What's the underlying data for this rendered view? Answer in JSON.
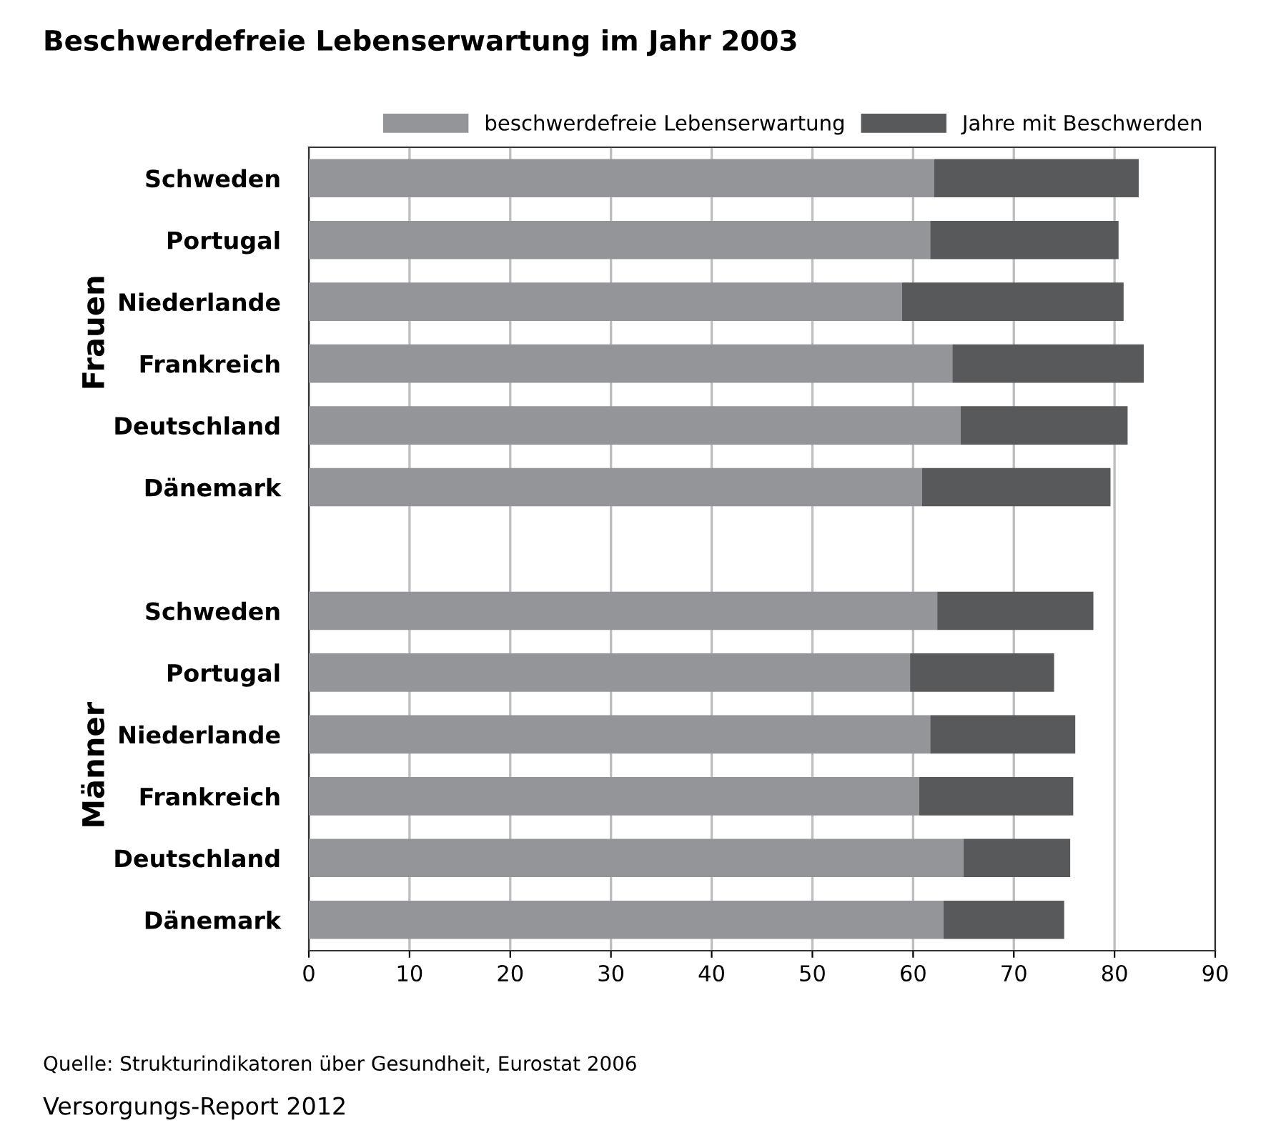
{
  "chart_data": {
    "type": "bar",
    "orientation": "horizontal",
    "stacked": true,
    "title": "Beschwerdefreie Lebenserwartung im Jahr 2003",
    "categories": [
      "Schweden",
      "Portugal",
      "Niederlande",
      "Frankreich",
      "Deutschland",
      "Dänemark",
      null,
      "Schweden",
      "Portugal",
      "Niederlande",
      "Frankreich",
      "Deutschland",
      "Dänemark"
    ],
    "series": [
      {
        "name": "beschwerdefreie Lebenserwartung",
        "color": "#939598",
        "values": [
          62.1,
          61.7,
          58.9,
          63.9,
          64.7,
          60.9,
          null,
          62.4,
          59.7,
          61.7,
          60.6,
          65.0,
          63.0
        ]
      },
      {
        "name": "Jahre mit Beschwerden",
        "color": "#58595b",
        "values": [
          20.3,
          18.7,
          22.0,
          19.0,
          16.6,
          18.7,
          null,
          15.5,
          14.3,
          14.4,
          15.3,
          10.6,
          12.0
        ]
      }
    ],
    "xlim": [
      0,
      90
    ],
    "xticks": [
      0,
      10,
      20,
      30,
      40,
      50,
      60,
      70,
      80,
      90
    ],
    "grid": "x",
    "legend": "top right",
    "annotations": [
      "Frauen",
      "Männer",
      "Quelle: Strukturindikatoren über Gesundheit, Eurostat 2006",
      "Versorgungs-Report 2012"
    ]
  }
}
